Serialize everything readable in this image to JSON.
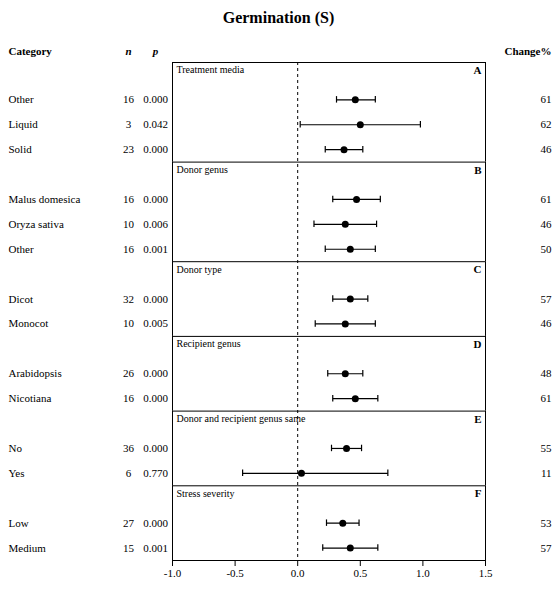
{
  "chart_data": {
    "type": "forest",
    "title": "Germination (S)",
    "columns": [
      "Category",
      "n",
      "p",
      "Change%"
    ],
    "groups": [
      {
        "label": "Treatment media",
        "letter": "A",
        "rows": [
          {
            "category": "Other",
            "n": 16,
            "p": "0.000",
            "mean": 0.46,
            "ci_lo": 0.31,
            "ci_hi": 0.62,
            "change": 61
          },
          {
            "category": "Liquid",
            "n": 3,
            "p": "0.042",
            "mean": 0.5,
            "ci_lo": 0.02,
            "ci_hi": 0.98,
            "change": 62
          },
          {
            "category": "Solid",
            "n": 23,
            "p": "0.000",
            "mean": 0.37,
            "ci_lo": 0.22,
            "ci_hi": 0.52,
            "change": 46
          }
        ]
      },
      {
        "label": "Donor genus",
        "letter": "B",
        "rows": [
          {
            "category": "Malus domesica",
            "n": 16,
            "p": "0.000",
            "mean": 0.47,
            "ci_lo": 0.28,
            "ci_hi": 0.66,
            "change": 61
          },
          {
            "category": "Oryza sativa",
            "n": 10,
            "p": "0.006",
            "mean": 0.38,
            "ci_lo": 0.13,
            "ci_hi": 0.63,
            "change": 46
          },
          {
            "category": "Other",
            "n": 16,
            "p": "0.001",
            "mean": 0.42,
            "ci_lo": 0.22,
            "ci_hi": 0.62,
            "change": 50
          }
        ]
      },
      {
        "label": "Donor type",
        "letter": "C",
        "rows": [
          {
            "category": "Dicot",
            "n": 32,
            "p": "0.000",
            "mean": 0.42,
            "ci_lo": 0.28,
            "ci_hi": 0.56,
            "change": 57
          },
          {
            "category": "Monocot",
            "n": 10,
            "p": "0.005",
            "mean": 0.38,
            "ci_lo": 0.14,
            "ci_hi": 0.62,
            "change": 46
          }
        ]
      },
      {
        "label": "Recipient genus",
        "letter": "D",
        "rows": [
          {
            "category": "Arabidopsis",
            "n": 26,
            "p": "0.000",
            "mean": 0.38,
            "ci_lo": 0.24,
            "ci_hi": 0.52,
            "change": 48
          },
          {
            "category": "Nicotiana",
            "n": 16,
            "p": "0.000",
            "mean": 0.46,
            "ci_lo": 0.28,
            "ci_hi": 0.64,
            "change": 61
          }
        ]
      },
      {
        "label": "Donor and recipient genus same",
        "letter": "E",
        "rows": [
          {
            "category": "No",
            "n": 36,
            "p": "0.000",
            "mean": 0.39,
            "ci_lo": 0.27,
            "ci_hi": 0.51,
            "change": 55
          },
          {
            "category": "Yes",
            "n": 6,
            "p": "0.770",
            "mean": 0.03,
            "ci_lo": -0.44,
            "ci_hi": 0.72,
            "change": 11
          }
        ]
      },
      {
        "label": "Stress severity",
        "letter": "F",
        "rows": [
          {
            "category": "Low",
            "n": 27,
            "p": "0.000",
            "mean": 0.36,
            "ci_lo": 0.23,
            "ci_hi": 0.49,
            "change": 53
          },
          {
            "category": "Medium",
            "n": 15,
            "p": "0.001",
            "mean": 0.42,
            "ci_lo": 0.2,
            "ci_hi": 0.64,
            "change": 57
          }
        ]
      }
    ],
    "xlim": [
      -1.0,
      1.5
    ],
    "xticks": [
      {
        "value": -1.0,
        "label": "-1.0"
      },
      -0.5,
      {
        "value": 0,
        "label": "0.0"
      },
      0.5,
      {
        "value": 1.0,
        "label": "1.0"
      },
      1.5
    ],
    "reference_line": 0
  }
}
